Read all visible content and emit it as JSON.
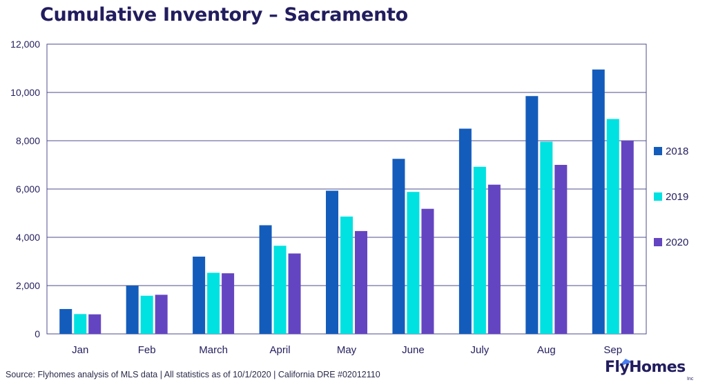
{
  "title": "Cumulative Inventory – Sacramento",
  "source": "Source: Flyhomes analysis of MLS data | All statistics as of 10/1/2020 | California DRE #02012110",
  "logo": {
    "text": "FlyHomes",
    "inc": "Inc"
  },
  "colors": {
    "2018": "#145cbb",
    "2019": "#00e1e1",
    "2020": "#6445c1",
    "grid": "#4b4b8c",
    "text": "#221d5e"
  },
  "chart_data": {
    "type": "bar",
    "title": "Cumulative Inventory – Sacramento",
    "xlabel": "",
    "ylabel": "",
    "categories": [
      "Jan",
      "Feb",
      "March",
      "April",
      "May",
      "June",
      "July",
      "Aug",
      "Sep"
    ],
    "series": [
      {
        "name": "2018",
        "values": [
          1030,
          2000,
          3200,
          4500,
          5930,
          7250,
          8500,
          9850,
          10950
        ]
      },
      {
        "name": "2019",
        "values": [
          820,
          1580,
          2530,
          3650,
          4860,
          5880,
          6920,
          7960,
          8900
        ]
      },
      {
        "name": "2020",
        "values": [
          810,
          1620,
          2510,
          3330,
          4260,
          5180,
          6180,
          7000,
          8000
        ]
      }
    ],
    "ylim": [
      0,
      12000
    ],
    "yticks": [
      0,
      2000,
      4000,
      6000,
      8000,
      10000,
      12000
    ],
    "ytick_labels": [
      "0",
      "2,000",
      "4,000",
      "6,000",
      "8,000",
      "10,000",
      "12,000"
    ],
    "grid": true,
    "legend": "right"
  }
}
